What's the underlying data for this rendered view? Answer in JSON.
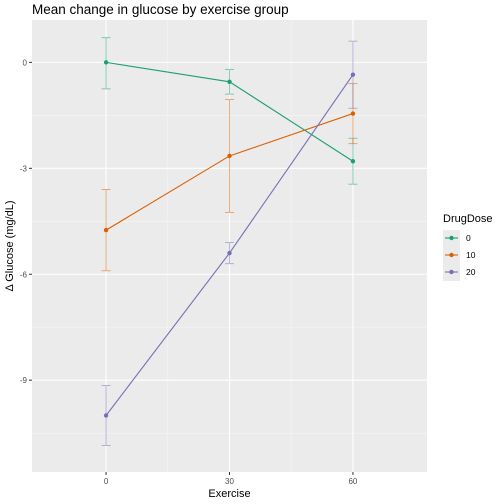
{
  "chart_data": {
    "type": "line",
    "title": "Mean change in glucose by exercise group",
    "xlabel": "Exercise",
    "ylabel": "Δ Glucose (mg/dL)",
    "x": [
      0,
      30,
      60
    ],
    "x_ticks": [
      "0",
      "30",
      "60"
    ],
    "y_ticks": [
      "0",
      "-3",
      "-6",
      "-9"
    ],
    "y_tick_values": [
      0,
      -3,
      -6,
      -9
    ],
    "xlim": [
      -18,
      78
    ],
    "ylim": [
      -11.6,
      1.2
    ],
    "grid": true,
    "error_bars": true,
    "legend": {
      "title": "DrugDose",
      "position": "right"
    },
    "series": [
      {
        "name": "0",
        "color": "#1b9e77",
        "values": [
          0.0,
          -0.55,
          -2.8
        ],
        "err_low": [
          -0.75,
          -0.9,
          -3.45
        ],
        "err_high": [
          0.7,
          -0.2,
          -2.15
        ]
      },
      {
        "name": "10",
        "color": "#d95f02",
        "values": [
          -4.75,
          -2.65,
          -1.45
        ],
        "err_low": [
          -5.9,
          -4.25,
          -2.3
        ],
        "err_high": [
          -3.6,
          -1.05,
          -0.6
        ]
      },
      {
        "name": "20",
        "color": "#7570b3",
        "values": [
          -10.0,
          -5.4,
          -0.35
        ],
        "err_low": [
          -10.85,
          -5.7,
          -1.3
        ],
        "err_high": [
          -9.15,
          -5.1,
          0.6
        ]
      }
    ]
  }
}
